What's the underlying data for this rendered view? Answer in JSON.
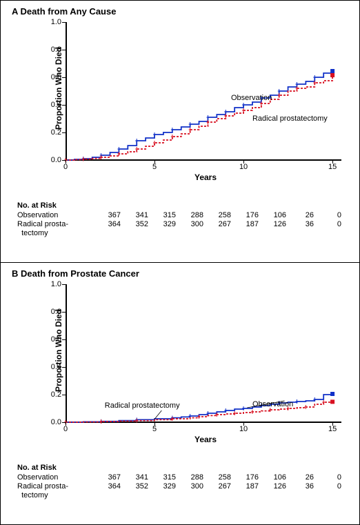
{
  "colors": {
    "observation": "#1030c8",
    "prostatectomy": "#d81020",
    "axis": "#000000",
    "background": "#ffffff"
  },
  "fonts": {
    "title_size": 13,
    "axis_label_size": 12,
    "tick_size": 11,
    "risk_size": 11
  },
  "panels": [
    {
      "key": "A",
      "title": "A   Death from Any Cause",
      "ylabel": "Proportion Who Died",
      "xlabel": "Years",
      "xlim": [
        0,
        15.5
      ],
      "ylim": [
        0,
        1.0
      ],
      "xticks": [
        0,
        5,
        10,
        15
      ],
      "yticks": [
        0.0,
        0.2,
        0.4,
        0.6,
        0.8,
        1.0
      ],
      "ytick_labels": [
        "0.0",
        "0.2",
        "0.4",
        "0.6",
        "0.8",
        "1.0"
      ],
      "series": [
        {
          "name": "Observation",
          "color": "#1030c8",
          "dash": "none",
          "line_width": 1.8,
          "marker": "plus",
          "points": [
            [
              0,
              0.0
            ],
            [
              0.5,
              0.005
            ],
            [
              1,
              0.01
            ],
            [
              1.5,
              0.02
            ],
            [
              2,
              0.035
            ],
            [
              2.5,
              0.055
            ],
            [
              3,
              0.08
            ],
            [
              3.5,
              0.105
            ],
            [
              4,
              0.14
            ],
            [
              4.5,
              0.16
            ],
            [
              5,
              0.185
            ],
            [
              5.5,
              0.2
            ],
            [
              6,
              0.22
            ],
            [
              6.5,
              0.24
            ],
            [
              7,
              0.26
            ],
            [
              7.5,
              0.28
            ],
            [
              8,
              0.31
            ],
            [
              8.5,
              0.33
            ],
            [
              9,
              0.35
            ],
            [
              9.5,
              0.38
            ],
            [
              10,
              0.4
            ],
            [
              10.5,
              0.42
            ],
            [
              11,
              0.45
            ],
            [
              11.5,
              0.47
            ],
            [
              12,
              0.5
            ],
            [
              12.5,
              0.53
            ],
            [
              13,
              0.55
            ],
            [
              13.5,
              0.57
            ],
            [
              14,
              0.6
            ],
            [
              14.5,
              0.63
            ],
            [
              15,
              0.645
            ]
          ],
          "label_pos": [
            9.3,
            0.45
          ]
        },
        {
          "name": "Radical prostatectomy",
          "color": "#d81020",
          "dash": "3,2",
          "line_width": 1.8,
          "marker": "plus",
          "points": [
            [
              0,
              0.0
            ],
            [
              0.5,
              0.003
            ],
            [
              1,
              0.007
            ],
            [
              1.5,
              0.012
            ],
            [
              2,
              0.02
            ],
            [
              2.5,
              0.03
            ],
            [
              3,
              0.045
            ],
            [
              3.5,
              0.06
            ],
            [
              4,
              0.08
            ],
            [
              4.5,
              0.1
            ],
            [
              5,
              0.125
            ],
            [
              5.5,
              0.145
            ],
            [
              6,
              0.17
            ],
            [
              6.5,
              0.19
            ],
            [
              7,
              0.22
            ],
            [
              7.5,
              0.245
            ],
            [
              8,
              0.275
            ],
            [
              8.5,
              0.3
            ],
            [
              9,
              0.32
            ],
            [
              9.5,
              0.34
            ],
            [
              10,
              0.36
            ],
            [
              10.5,
              0.38
            ],
            [
              11,
              0.41
            ],
            [
              11.5,
              0.44
            ],
            [
              12,
              0.47
            ],
            [
              12.5,
              0.5
            ],
            [
              13,
              0.52
            ],
            [
              13.5,
              0.53
            ],
            [
              14,
              0.56
            ],
            [
              14.5,
              0.575
            ],
            [
              15,
              0.615
            ]
          ],
          "label_pos": [
            10.5,
            0.3
          ]
        }
      ],
      "risk_title": "No. at Risk",
      "risk_rows": [
        {
          "label": "Observation",
          "values": [
            367,
            341,
            315,
            288,
            258,
            176,
            106,
            26,
            0
          ]
        },
        {
          "label": "Radical prosta-\n  tectomy",
          "values": [
            364,
            352,
            329,
            300,
            267,
            187,
            126,
            36,
            0
          ]
        }
      ]
    },
    {
      "key": "B",
      "title": "B   Death from Prostate Cancer",
      "ylabel": "Proportion Who Died",
      "xlabel": "Years",
      "xlim": [
        0,
        15.5
      ],
      "ylim": [
        0,
        1.0
      ],
      "xticks": [
        0,
        5,
        10,
        15
      ],
      "yticks": [
        0.0,
        0.2,
        0.4,
        0.6,
        0.8,
        1.0
      ],
      "ytick_labels": [
        "0.0",
        "0.2",
        "0.4",
        "0.6",
        "0.8",
        "1.0"
      ],
      "series": [
        {
          "name": "Observation",
          "color": "#1030c8",
          "dash": "none",
          "line_width": 1.8,
          "marker": "plus",
          "points": [
            [
              0,
              0.0
            ],
            [
              1,
              0.003
            ],
            [
              2,
              0.006
            ],
            [
              3,
              0.012
            ],
            [
              4,
              0.018
            ],
            [
              5,
              0.025
            ],
            [
              6,
              0.032
            ],
            [
              6.5,
              0.038
            ],
            [
              7,
              0.045
            ],
            [
              7.5,
              0.055
            ],
            [
              8,
              0.065
            ],
            [
              8.5,
              0.075
            ],
            [
              9,
              0.085
            ],
            [
              9.5,
              0.095
            ],
            [
              10,
              0.1
            ],
            [
              10.5,
              0.11
            ],
            [
              11,
              0.12
            ],
            [
              11.5,
              0.13
            ],
            [
              12,
              0.14
            ],
            [
              12.5,
              0.145
            ],
            [
              13,
              0.15
            ],
            [
              13.5,
              0.155
            ],
            [
              14,
              0.165
            ],
            [
              14.5,
              0.2
            ],
            [
              15,
              0.205
            ]
          ],
          "label_pos": [
            10.5,
            0.13
          ],
          "callout": {
            "from": [
              12.3,
              0.155
            ],
            "to": [
              10.2,
              0.105
            ]
          }
        },
        {
          "name": "Radical prostatectomy",
          "color": "#d81020",
          "dash": "3,2",
          "line_width": 1.8,
          "marker": "plus",
          "points": [
            [
              0,
              0.0
            ],
            [
              1,
              0.002
            ],
            [
              2,
              0.005
            ],
            [
              3,
              0.008
            ],
            [
              4,
              0.012
            ],
            [
              5,
              0.018
            ],
            [
              6,
              0.025
            ],
            [
              7,
              0.032
            ],
            [
              7.5,
              0.04
            ],
            [
              8,
              0.048
            ],
            [
              8.5,
              0.055
            ],
            [
              9,
              0.06
            ],
            [
              9.5,
              0.065
            ],
            [
              10,
              0.07
            ],
            [
              10.5,
              0.075
            ],
            [
              11,
              0.082
            ],
            [
              11.5,
              0.09
            ],
            [
              12,
              0.095
            ],
            [
              12.5,
              0.1
            ],
            [
              13,
              0.105
            ],
            [
              13.5,
              0.11
            ],
            [
              14,
              0.13
            ],
            [
              14.5,
              0.145
            ],
            [
              15,
              0.148
            ]
          ],
          "label_pos": [
            2.2,
            0.12
          ],
          "callout": {
            "from": [
              5.4,
              0.085
            ],
            "to": [
              5.0,
              0.022
            ]
          }
        }
      ],
      "risk_title": "No. at Risk",
      "risk_rows": [
        {
          "label": "Observation",
          "values": [
            367,
            341,
            315,
            288,
            258,
            176,
            106,
            26,
            0
          ]
        },
        {
          "label": "Radical prosta-\n  tectomy",
          "values": [
            364,
            352,
            329,
            300,
            267,
            187,
            126,
            36,
            0
          ]
        }
      ]
    }
  ]
}
